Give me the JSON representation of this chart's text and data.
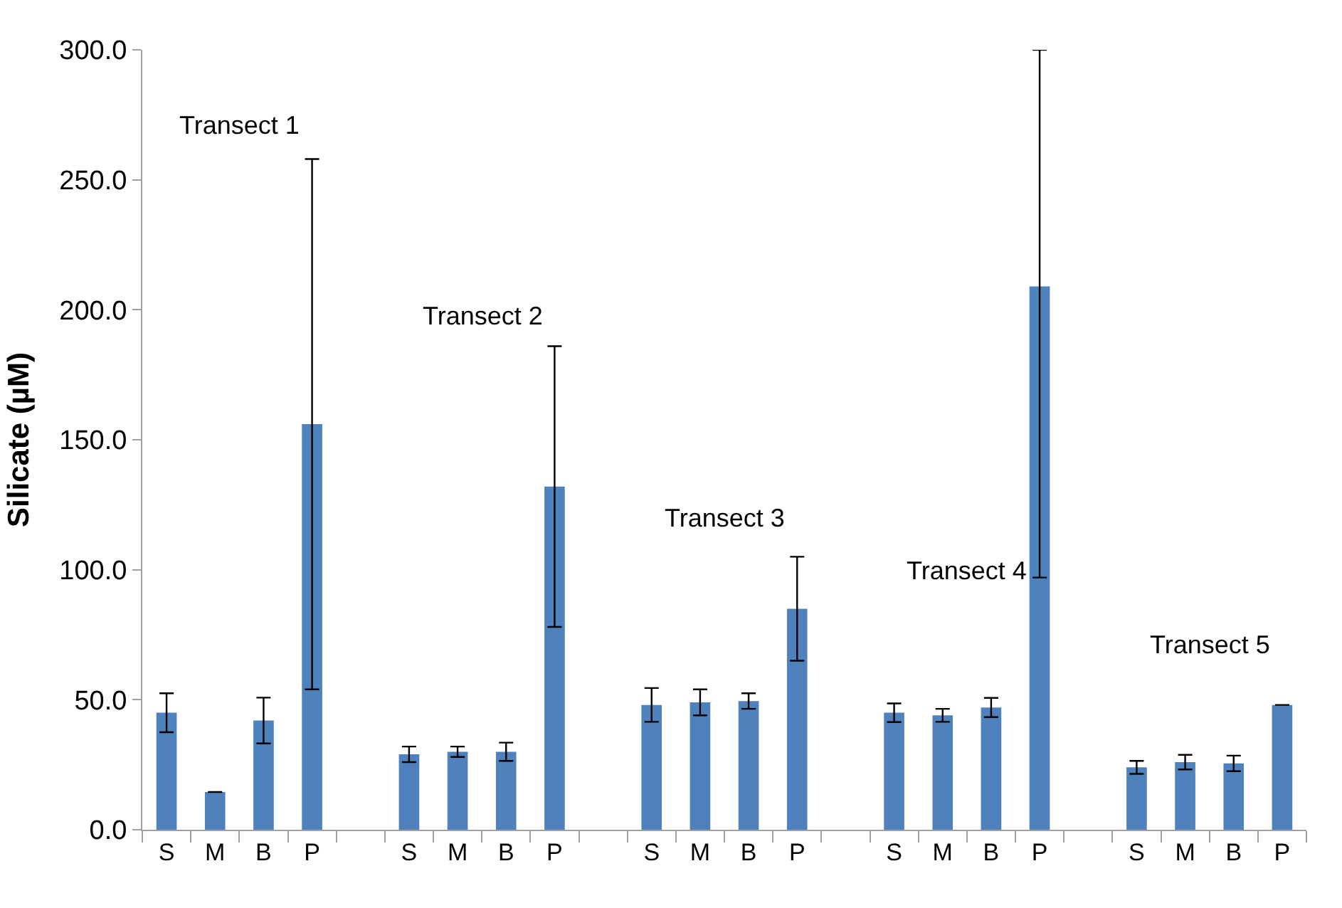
{
  "chart_data": {
    "type": "bar",
    "ylabel": "Silicate (µM)",
    "categories": [
      "S",
      "M",
      "B",
      "P",
      null,
      "S",
      "M",
      "B",
      "P",
      null,
      "S",
      "M",
      "B",
      "P",
      null,
      "S",
      "M",
      "B",
      "P",
      null,
      "S",
      "M",
      "B",
      "P"
    ],
    "values": [
      45,
      14.5,
      42,
      156,
      null,
      29,
      30,
      30,
      132,
      null,
      48,
      49,
      49.5,
      85,
      null,
      45,
      44,
      47,
      209,
      null,
      24,
      26,
      25.5,
      48
    ],
    "errors": [
      7.5,
      null,
      8.8,
      102,
      null,
      3,
      2,
      3.5,
      54,
      null,
      6.5,
      5,
      3,
      20,
      null,
      3.6,
      2.5,
      3.7,
      [
        97,
        300
      ],
      null,
      2.5,
      2.8,
      3,
      null
    ],
    "color": "#4f81bd",
    "ylim": [
      0,
      300
    ],
    "yticks": [
      {
        "value": 0,
        "label": "0.0"
      },
      {
        "value": 50,
        "label": "50.0"
      },
      {
        "value": 100,
        "label": "100.0"
      },
      {
        "value": 150,
        "label": "150.0"
      },
      {
        "value": 200,
        "label": "200.0"
      },
      {
        "value": 250,
        "label": "250.0"
      },
      {
        "value": 300,
        "label": "300.0"
      }
    ],
    "annotations": [
      "Transect 1",
      "Transect 2",
      "Transect 3",
      "Transect 4",
      "Transect 5"
    ]
  }
}
